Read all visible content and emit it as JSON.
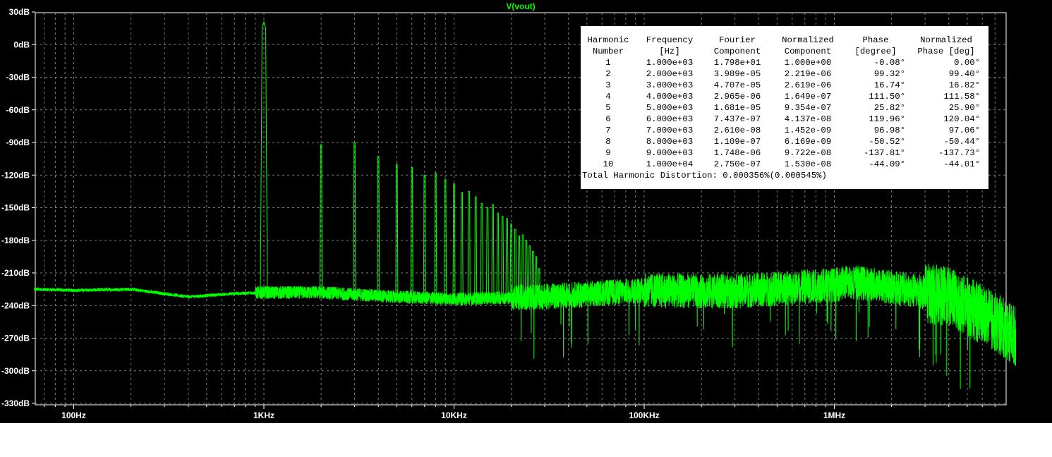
{
  "trace_title": "V(vout)",
  "colors": {
    "background": "#000000",
    "trace": "#00ff00",
    "grid": "#808080",
    "frame": "#ffffff",
    "panel": "#ffffff",
    "panel_text": "#000000"
  },
  "chart_data": {
    "type": "line",
    "title": "V(vout)",
    "xscale": "log",
    "x_ticks": [
      "100Hz",
      "1KHz",
      "10KHz",
      "100KHz",
      "1MHz"
    ],
    "y_ticks": [
      "30dB",
      "0dB",
      "-30dB",
      "-60dB",
      "-90dB",
      "-120dB",
      "-150dB",
      "-180dB",
      "-210dB",
      "-240dB",
      "-270dB",
      "-300dB",
      "-330dB"
    ],
    "xlim_hz": [
      62,
      9000000
    ],
    "ylim_db": [
      -330,
      30
    ],
    "grid": true,
    "series": [
      {
        "noise_floor": {
          "x_hz": [
            62,
            100,
            200,
            400,
            700,
            1000,
            2000,
            5000,
            10000,
            30000,
            100000,
            300000,
            1000000,
            1200000,
            2000000,
            4000000,
            6000000,
            8000000,
            9000000
          ],
          "y_db": [
            -225,
            -226,
            -225,
            -232,
            -229,
            -228,
            -228,
            -232,
            -234,
            -232,
            -226,
            -227,
            -221,
            -218,
            -223,
            -232,
            -248,
            -262,
            -268
          ]
        },
        "harmonic_peaks": {
          "x_hz": [
            1000,
            2000,
            3000,
            4000,
            5000,
            6000,
            7000,
            8000,
            9000,
            10000,
            11000,
            12000,
            13000,
            14000,
            15000,
            16000,
            17000,
            18000,
            19000,
            20000,
            21000,
            22000,
            23000,
            24000,
            25000,
            26000,
            27000,
            28000
          ],
          "y_db": [
            21,
            -92,
            -90,
            -103,
            -110,
            -113,
            -120,
            -118,
            -124,
            -128,
            -136,
            -135,
            -140,
            -146,
            -150,
            -147,
            -155,
            -158,
            -160,
            -165,
            -170,
            -176,
            -175,
            -180,
            -185,
            -190,
            -195,
            -206
          ]
        }
      }
    ]
  },
  "fourier_table": {
    "headers": [
      [
        "Harmonic",
        "Frequency",
        "Fourier",
        "Normalized",
        "Phase",
        "Normalized"
      ],
      [
        "Number",
        "[Hz]",
        "Component",
        "Component",
        "[degree]",
        "Phase [deg]"
      ]
    ],
    "rows": [
      [
        "1",
        "1.000e+03",
        "1.798e+01",
        "1.000e+00",
        "-0.08°",
        "0.00°"
      ],
      [
        "2",
        "2.000e+03",
        "3.989e-05",
        "2.219e-06",
        "99.32°",
        "99.40°"
      ],
      [
        "3",
        "3.000e+03",
        "4.707e-05",
        "2.619e-06",
        "16.74°",
        "16.82°"
      ],
      [
        "4",
        "4.000e+03",
        "2.965e-06",
        "1.649e-07",
        "111.50°",
        "111.58°"
      ],
      [
        "5",
        "5.000e+03",
        "1.681e-05",
        "9.354e-07",
        "25.82°",
        "25.90°"
      ],
      [
        "6",
        "6.000e+03",
        "7.437e-07",
        "4.137e-08",
        "119.96°",
        "120.04°"
      ],
      [
        "7",
        "7.000e+03",
        "2.610e-08",
        "1.452e-09",
        "96.98°",
        "97.06°"
      ],
      [
        "8",
        "8.000e+03",
        "1.109e-07",
        "6.169e-09",
        "-50.52°",
        "-50.44°"
      ],
      [
        "9",
        "9.000e+03",
        "1.748e-06",
        "9.722e-08",
        "-137.81°",
        "-137.73°"
      ],
      [
        "10",
        "1.000e+04",
        "2.750e-07",
        "1.530e-08",
        "-44.09°",
        "-44.01°"
      ]
    ],
    "thd": "Total Harmonic Distortion: 0.000356%(0.000545%)"
  }
}
